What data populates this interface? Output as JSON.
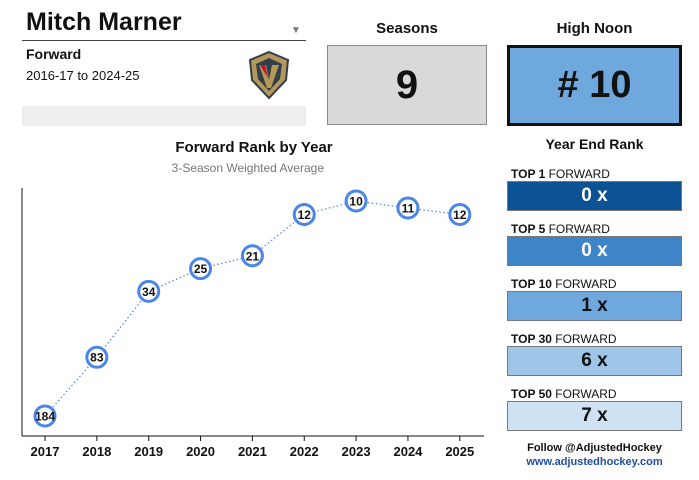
{
  "player": {
    "name": "Mitch Marner",
    "position": "Forward",
    "seasons_range": "2016-17 to 2024-25",
    "dropdown_icon": "chevron-down-icon",
    "team_logo_icon": "vegas-golden-knights-logo"
  },
  "seasons": {
    "title": "Seasons",
    "value": "9"
  },
  "high_noon": {
    "title": "High Noon",
    "value": "# 10",
    "color": "#6fa8dc"
  },
  "year_end_rank": {
    "title": "Year End Rank",
    "items": [
      {
        "prefix": "TOP 1",
        "suffix": " FORWARD",
        "value": "0 x",
        "color": "#0b5394",
        "text_color": "#ffffff"
      },
      {
        "prefix": "TOP 5",
        "suffix": " FORWARD",
        "value": "0 x",
        "color": "#3d85c6",
        "text_color": "#ffffff"
      },
      {
        "prefix": "TOP 10",
        "suffix": " FORWARD",
        "value": "1 x",
        "color": "#6fa8dc",
        "text_color": "#111111"
      },
      {
        "prefix": "TOP 30",
        "suffix": " FORWARD",
        "value": "6 x",
        "color": "#9fc5e8",
        "text_color": "#111111"
      },
      {
        "prefix": "TOP 50",
        "suffix": " FORWARD",
        "value": "7 x",
        "color": "#cfe2f3",
        "text_color": "#111111"
      }
    ]
  },
  "footer": {
    "follow": "Follow @AdjustedHockey",
    "site": "www.adjustedhockey.com"
  },
  "chart_data": {
    "type": "line",
    "title": "Forward Rank by Year",
    "subtitle": "3-Season Weighted Average",
    "x": [
      "2017",
      "2018",
      "2019",
      "2020",
      "2021",
      "2022",
      "2023",
      "2024",
      "2025"
    ],
    "y": [
      184,
      83,
      34,
      25,
      21,
      12,
      10,
      11,
      12
    ],
    "y_scale": "log",
    "y_inverted": true,
    "grid": false,
    "line_style": "dotted",
    "color": "#4a86e8"
  }
}
